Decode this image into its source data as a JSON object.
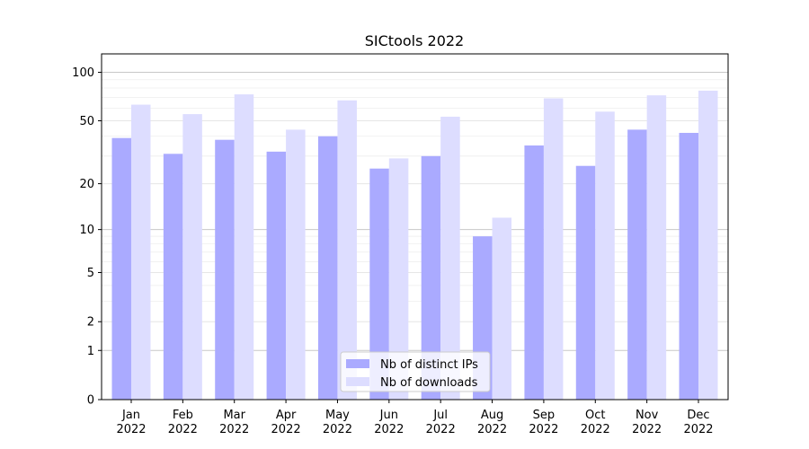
{
  "chart_data": {
    "type": "bar",
    "title": "SICtools 2022",
    "xlabel": "",
    "ylabel": "",
    "y_scale": "symlog",
    "ylim": [
      0,
      130
    ],
    "y_ticks": [
      0,
      1,
      2,
      5,
      10,
      20,
      50,
      100
    ],
    "y_tick_labels": [
      "0",
      "1",
      "2",
      "5",
      "10",
      "20",
      "50",
      "100"
    ],
    "grid": true,
    "legend_position": "bottom-center",
    "categories": [
      {
        "month": "Jan",
        "year": "2022"
      },
      {
        "month": "Feb",
        "year": "2022"
      },
      {
        "month": "Mar",
        "year": "2022"
      },
      {
        "month": "Apr",
        "year": "2022"
      },
      {
        "month": "May",
        "year": "2022"
      },
      {
        "month": "Jun",
        "year": "2022"
      },
      {
        "month": "Jul",
        "year": "2022"
      },
      {
        "month": "Aug",
        "year": "2022"
      },
      {
        "month": "Sep",
        "year": "2022"
      },
      {
        "month": "Oct",
        "year": "2022"
      },
      {
        "month": "Nov",
        "year": "2022"
      },
      {
        "month": "Dec",
        "year": "2022"
      }
    ],
    "series": [
      {
        "name": "Nb of distinct IPs",
        "color": "#aaaaff",
        "values": [
          39,
          31,
          38,
          32,
          40,
          25,
          30,
          9,
          35,
          26,
          44,
          42
        ]
      },
      {
        "name": "Nb of downloads",
        "color": "#ddddff",
        "values": [
          63,
          55,
          73,
          44,
          67,
          29,
          53,
          12,
          69,
          57,
          72,
          77
        ]
      }
    ]
  }
}
